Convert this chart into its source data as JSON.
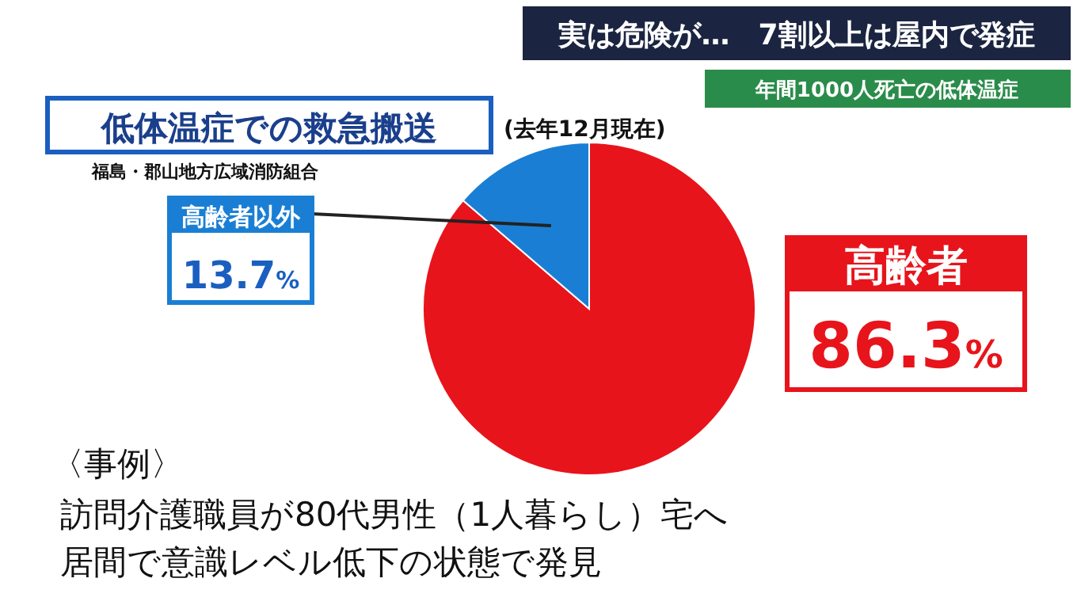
{
  "chart_data": {
    "type": "pie",
    "title": "低体温症での救急搬送",
    "categories": [
      "高齢者",
      "高齢者以外"
    ],
    "values": [
      86.3,
      13.7
    ],
    "colors": [
      "#e8141b",
      "#1a7fd4"
    ],
    "value_labels": [
      "86.3%",
      "13.7%"
    ],
    "annotations": [
      "(去年12月現在)",
      "福島・郡山地方広域消防組合",
      "実は危険が…　7割以上は屋内で発症",
      "年間1000人死亡の低体温症",
      "〈事例〉",
      "訪問介護職員が80代男性（1人暮らし）宅へ",
      "居間で意識レベル低下の状態で発見"
    ]
  }
}
